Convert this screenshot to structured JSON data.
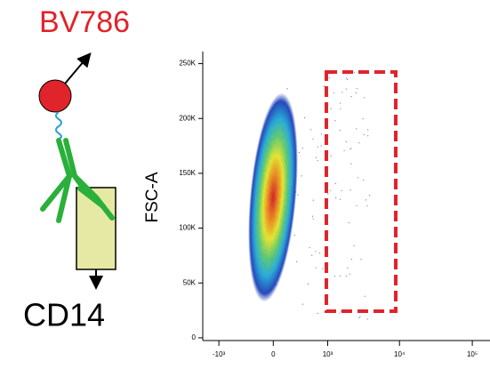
{
  "chart_data": {
    "type": "density",
    "title": "BV786",
    "marker_label": "CD14",
    "y_label": "FSC-A",
    "xscale": "biexponential",
    "xlim": [
      -1700,
      175000
    ],
    "xticks": [
      {
        "value": -1000,
        "label": "-10³"
      },
      0,
      {
        "value": 1000,
        "label": "10³"
      },
      {
        "value": 10000,
        "label": "10⁴"
      },
      {
        "value": 100000,
        "label": "10⁵"
      }
    ],
    "ylim": [
      -2500,
      261000
    ],
    "yticks": [
      0,
      {
        "value": 50000,
        "label": "50K"
      },
      {
        "value": 100000,
        "label": "100K"
      },
      {
        "value": 150000,
        "label": "150K"
      },
      {
        "value": 200000,
        "label": "200K"
      },
      {
        "value": 250000,
        "label": "250K"
      }
    ]
  }
}
